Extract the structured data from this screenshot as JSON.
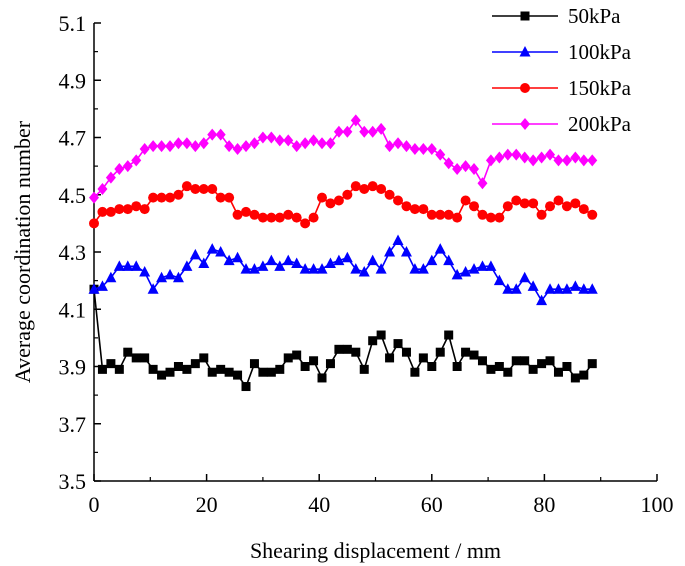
{
  "chart_data": {
    "type": "line",
    "title": "",
    "xlabel": "Shearing displacement / mm",
    "ylabel": "Average coordination number",
    "xlim": [
      0,
      100
    ],
    "ylim": [
      3.5,
      5.1
    ],
    "xticks": [
      0,
      20,
      40,
      60,
      80,
      100
    ],
    "yticks": [
      3.5,
      3.7,
      3.9,
      4.1,
      4.3,
      4.5,
      4.7,
      4.9,
      5.1
    ],
    "xtick_labels": [
      "0",
      "20",
      "40",
      "60",
      "80",
      "100"
    ],
    "ytick_labels": [
      "3.5",
      "3.7",
      "3.9",
      "4.1",
      "4.3",
      "4.5",
      "4.7",
      "4.9",
      "5.1"
    ],
    "grid": false,
    "legend_position": "top-right",
    "x": [
      0,
      1.5,
      3,
      4.5,
      6,
      7.5,
      9,
      10.5,
      12,
      13.5,
      15,
      16.5,
      18,
      19.5,
      21,
      22.5,
      24,
      25.5,
      27,
      28.5,
      30,
      31.5,
      33,
      34.5,
      36,
      37.5,
      39,
      40.5,
      42,
      43.5,
      45,
      46.5,
      48,
      49.5,
      51,
      52.5,
      54,
      55.5,
      57,
      58.5,
      60,
      61.5,
      63,
      64.5,
      66,
      67.5,
      69,
      70.5,
      72,
      73.5,
      75,
      76.5,
      78,
      79.5,
      81,
      82.5,
      84,
      85.5,
      87,
      88.5
    ],
    "series": [
      {
        "name": "50kPa",
        "color": "#000000",
        "marker": "square",
        "values": [
          4.17,
          3.89,
          3.91,
          3.89,
          3.95,
          3.93,
          3.93,
          3.89,
          3.87,
          3.88,
          3.9,
          3.89,
          3.91,
          3.93,
          3.88,
          3.89,
          3.88,
          3.87,
          3.83,
          3.91,
          3.88,
          3.88,
          3.89,
          3.93,
          3.94,
          3.9,
          3.92,
          3.86,
          3.91,
          3.96,
          3.96,
          3.95,
          3.89,
          3.99,
          4.01,
          3.93,
          3.98,
          3.95,
          3.88,
          3.93,
          3.9,
          3.95,
          4.01,
          3.9,
          3.95,
          3.94,
          3.92,
          3.89,
          3.9,
          3.88,
          3.92,
          3.92,
          3.89,
          3.91,
          3.92,
          3.88,
          3.9,
          3.86,
          3.87,
          3.91
        ]
      },
      {
        "name": "100kPa",
        "color": "#0000ff",
        "marker": "triangle",
        "values": [
          4.17,
          4.18,
          4.21,
          4.25,
          4.25,
          4.25,
          4.23,
          4.17,
          4.21,
          4.22,
          4.21,
          4.25,
          4.29,
          4.26,
          4.31,
          4.3,
          4.27,
          4.28,
          4.24,
          4.24,
          4.25,
          4.27,
          4.25,
          4.27,
          4.26,
          4.24,
          4.24,
          4.24,
          4.26,
          4.27,
          4.28,
          4.24,
          4.23,
          4.27,
          4.24,
          4.3,
          4.34,
          4.3,
          4.24,
          4.24,
          4.27,
          4.31,
          4.27,
          4.22,
          4.23,
          4.24,
          4.25,
          4.25,
          4.2,
          4.17,
          4.17,
          4.21,
          4.18,
          4.13,
          4.17,
          4.17,
          4.17,
          4.18,
          4.17,
          4.17
        ]
      },
      {
        "name": "150kPa",
        "color": "#ff0000",
        "marker": "circle",
        "values": [
          4.4,
          4.44,
          4.44,
          4.45,
          4.45,
          4.46,
          4.45,
          4.49,
          4.49,
          4.49,
          4.5,
          4.53,
          4.52,
          4.52,
          4.52,
          4.49,
          4.49,
          4.43,
          4.44,
          4.43,
          4.42,
          4.42,
          4.42,
          4.43,
          4.42,
          4.4,
          4.42,
          4.49,
          4.47,
          4.48,
          4.5,
          4.53,
          4.52,
          4.53,
          4.52,
          4.5,
          4.48,
          4.46,
          4.45,
          4.45,
          4.43,
          4.43,
          4.43,
          4.42,
          4.48,
          4.46,
          4.43,
          4.42,
          4.42,
          4.46,
          4.48,
          4.47,
          4.47,
          4.43,
          4.46,
          4.48,
          4.46,
          4.47,
          4.45,
          4.43
        ]
      },
      {
        "name": "200kPa",
        "color": "#ff00ff",
        "marker": "diamond",
        "values": [
          4.49,
          4.52,
          4.56,
          4.59,
          4.6,
          4.62,
          4.66,
          4.67,
          4.67,
          4.67,
          4.68,
          4.68,
          4.67,
          4.68,
          4.71,
          4.71,
          4.67,
          4.66,
          4.67,
          4.68,
          4.7,
          4.7,
          4.69,
          4.69,
          4.67,
          4.68,
          4.69,
          4.68,
          4.68,
          4.72,
          4.72,
          4.76,
          4.72,
          4.72,
          4.73,
          4.67,
          4.68,
          4.67,
          4.66,
          4.66,
          4.66,
          4.64,
          4.61,
          4.59,
          4.6,
          4.59,
          4.54,
          4.62,
          4.63,
          4.64,
          4.64,
          4.63,
          4.62,
          4.63,
          4.64,
          4.62,
          4.62,
          4.63,
          4.62,
          4.62
        ]
      }
    ]
  }
}
